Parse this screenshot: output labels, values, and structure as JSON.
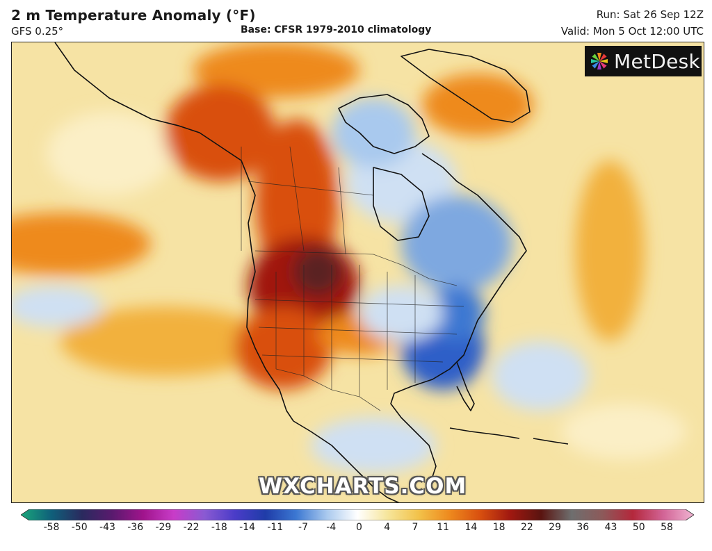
{
  "header": {
    "title": "2 m Temperature Anomaly (°F)",
    "model": "GFS 0.25°",
    "base": "Base: CFSR 1979-2010 climatology",
    "run": "Run: Sat 26 Sep 12Z",
    "valid": "Valid: Mon 5 Oct 12:00 UTC"
  },
  "logo": {
    "text": "MetDesk",
    "icon": "metdesk-pinwheel-icon"
  },
  "watermark": "WXCHARTS.COM",
  "colorbar": {
    "ticks": [
      "-58",
      "-50",
      "-43",
      "-36",
      "-29",
      "-22",
      "-18",
      "-14",
      "-11",
      "-7",
      "-4",
      "0",
      "4",
      "7",
      "11",
      "14",
      "18",
      "22",
      "29",
      "36",
      "43",
      "50",
      "58"
    ],
    "stops": [
      "#1aa67a",
      "#0f5f7a",
      "#2a2a5e",
      "#5a1a6e",
      "#a0148c",
      "#c83cc8",
      "#8a5ad2",
      "#4a3cc8",
      "#1f3ca8",
      "#3c78d2",
      "#a9c9ee",
      "#ffffff",
      "#f6e59a",
      "#f2c24a",
      "#ee8a1e",
      "#d9500f",
      "#a01810",
      "#5a1410",
      "#6e6e6e",
      "#8c5a5a",
      "#b4283c",
      "#d26496",
      "#f0b4d2"
    ]
  },
  "colors": {
    "neutral": "#f6e3a4",
    "warm": "#ee8a1e",
    "hot": "#c8300f",
    "very_hot": "#7a1410",
    "cool": "#a9c9ee",
    "cold": "#3c78d2",
    "very_cold": "#1f4cb8"
  }
}
